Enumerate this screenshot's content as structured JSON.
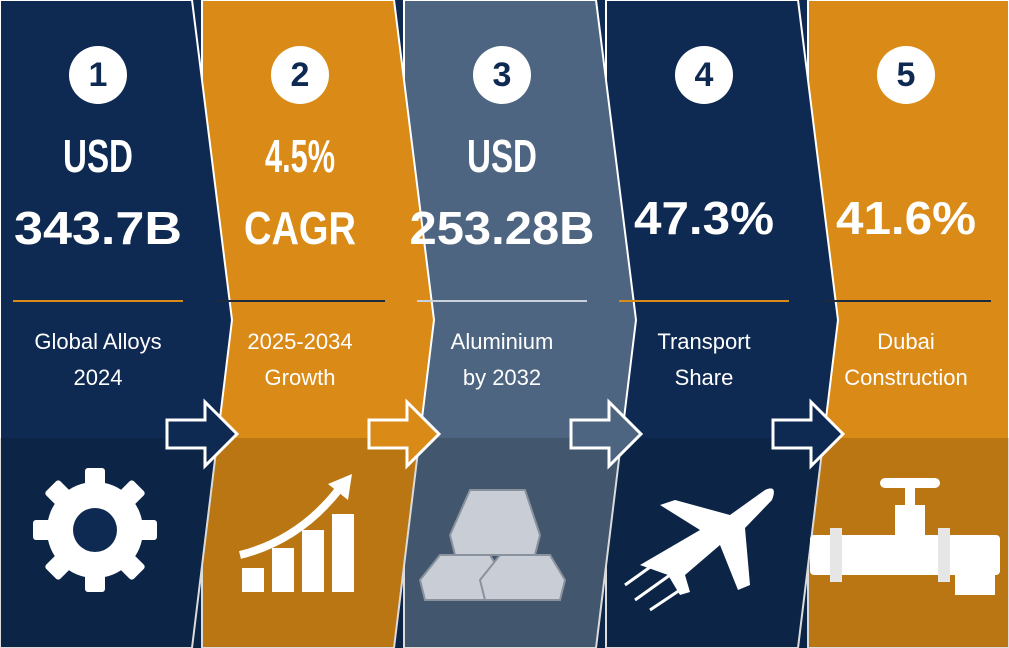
{
  "panels": [
    {
      "number": "1",
      "value_lines": [
        "USD",
        "343.7B"
      ],
      "label_lines": [
        "Global Alloys",
        "2024"
      ]
    },
    {
      "number": "2",
      "value_lines": [
        "4.5%",
        "CAGR"
      ],
      "label_lines": [
        "2025-2034",
        "Growth"
      ]
    },
    {
      "number": "3",
      "value_lines": [
        "USD",
        "253.28B"
      ],
      "label_lines": [
        "Aluminium",
        "by 2032"
      ]
    },
    {
      "number": "4",
      "value_lines": [
        "47.3%"
      ],
      "label_lines": [
        "Transport",
        "Share"
      ]
    },
    {
      "number": "5",
      "value_lines": [
        "41.6%"
      ],
      "label_lines": [
        "Dubai",
        "Construction"
      ]
    }
  ]
}
